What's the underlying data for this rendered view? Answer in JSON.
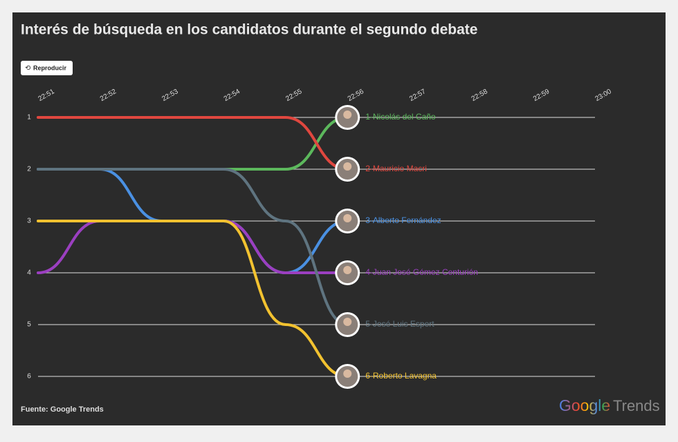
{
  "chart_data": {
    "type": "bump",
    "title": "Interés de búsqueda en los candidatos durante el segundo debate",
    "button": "Reproducir",
    "source": "Fuente: Google Trends",
    "logo": [
      "Google",
      "Trends"
    ],
    "x": [
      "22:51",
      "22:52",
      "22:53",
      "22:54",
      "22:55",
      "22:56",
      "22:57",
      "22:58",
      "22:59",
      "23:00"
    ],
    "ylim": [
      6,
      1
    ],
    "yticks": [
      1,
      2,
      3,
      4,
      5,
      6
    ],
    "grid": true,
    "series": [
      {
        "name": "1-Nicolás del Caño",
        "color": "#5cb85c",
        "values": [
          null,
          null,
          null,
          2,
          2,
          1,
          null,
          null,
          null,
          null
        ]
      },
      {
        "name": "2-Mauricio Macri",
        "color": "#e0473f",
        "values": [
          1,
          1,
          1,
          1,
          1,
          2,
          null,
          null,
          null,
          null
        ]
      },
      {
        "name": "3-Alberto Fernández",
        "color": "#4a90e2",
        "values": [
          2,
          2,
          3,
          3,
          4,
          3,
          null,
          null,
          null,
          null
        ]
      },
      {
        "name": "4-Juan José Gómez Centurión",
        "color": "#9b3fc0",
        "values": [
          4,
          3,
          3,
          3,
          4,
          4,
          null,
          null,
          null,
          null
        ]
      },
      {
        "name": "5-José Luis Espert",
        "color": "#5f7480",
        "values": [
          2,
          2,
          2,
          2,
          3,
          5,
          null,
          null,
          null,
          null
        ]
      },
      {
        "name": "6-Roberto Lavagna",
        "color": "#f2c230",
        "values": [
          3,
          3,
          3,
          3,
          5,
          6,
          null,
          null,
          null,
          null
        ]
      }
    ]
  }
}
